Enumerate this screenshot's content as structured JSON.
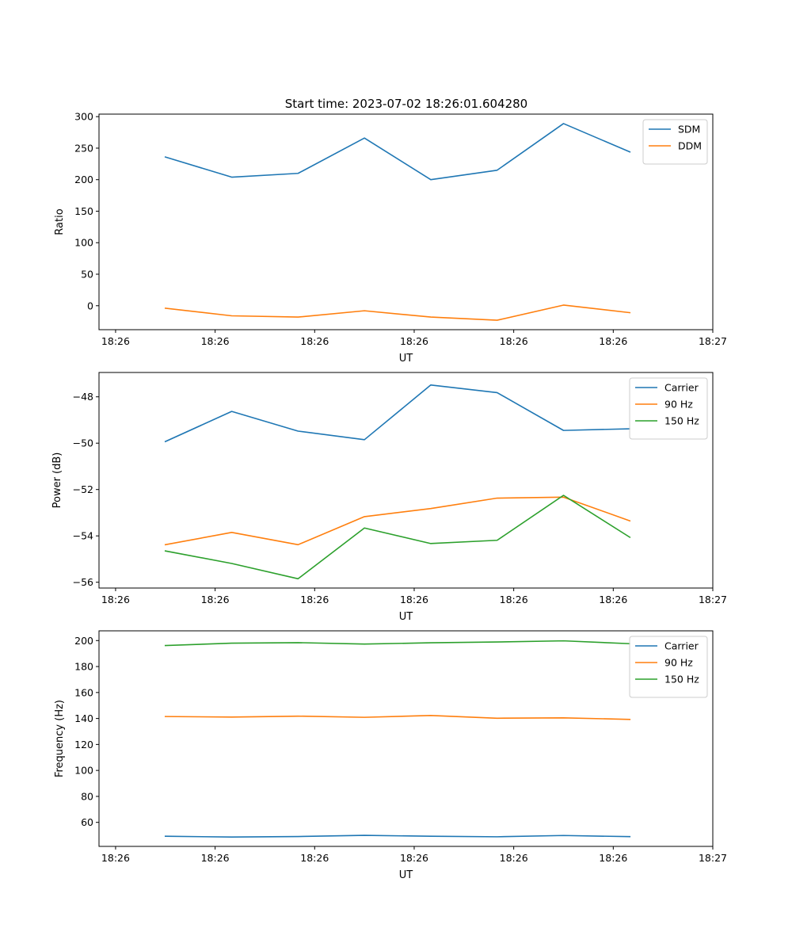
{
  "figure_title": "Start time: 2023-07-02 18:26:01.604280",
  "colors": {
    "c0": "#1f77b4",
    "c1": "#ff7f0e",
    "c2": "#2ca02c"
  },
  "chart_data": [
    {
      "type": "line",
      "xlabel": "UT",
      "ylabel": "Ratio",
      "x": [
        1,
        2,
        3,
        4,
        5,
        6,
        7,
        8
      ],
      "xlim": [
        0,
        9.25
      ],
      "x_ticks": [
        0.25,
        1.75,
        3.25,
        4.75,
        6.25,
        7.75,
        9.25
      ],
      "x_tick_labels": [
        "18:26",
        "18:26",
        "18:26",
        "18:26",
        "18:26",
        "18:26",
        "18:27"
      ],
      "ylim": [
        -38,
        304
      ],
      "y_ticks": [
        0,
        50,
        100,
        150,
        200,
        250,
        300
      ],
      "y_tick_labels": [
        "0",
        "50",
        "100",
        "150",
        "200",
        "250",
        "300"
      ],
      "legend_position": "top-right",
      "series": [
        {
          "name": "SDM",
          "color": "#1f77b4",
          "values": [
            236,
            204,
            210,
            266,
            200,
            215,
            289,
            244
          ]
        },
        {
          "name": "DDM",
          "color": "#ff7f0e",
          "values": [
            -4,
            -16,
            -18,
            -8,
            -18,
            -23,
            1,
            -11
          ]
        }
      ]
    },
    {
      "type": "line",
      "xlabel": "UT",
      "ylabel": "Power (dB)",
      "x": [
        1,
        2,
        3,
        4,
        5,
        6,
        7,
        8
      ],
      "xlim": [
        0,
        9.25
      ],
      "x_ticks": [
        0.25,
        1.75,
        3.25,
        4.75,
        6.25,
        7.75,
        9.25
      ],
      "x_tick_labels": [
        "18:26",
        "18:26",
        "18:26",
        "18:26",
        "18:26",
        "18:26",
        "18:27"
      ],
      "ylim": [
        -56.25,
        -46.95
      ],
      "y_ticks": [
        -56,
        -54,
        -52,
        -50,
        -48
      ],
      "y_tick_labels": [
        "−56",
        "−54",
        "−52",
        "−50",
        "−48"
      ],
      "legend_position": "top-right",
      "series": [
        {
          "name": "Carrier",
          "color": "#1f77b4",
          "values": [
            -49.93,
            -48.63,
            -49.48,
            -49.85,
            -47.49,
            -47.82,
            -49.45,
            -49.38
          ]
        },
        {
          "name": "90 Hz",
          "color": "#ff7f0e",
          "values": [
            -54.38,
            -53.85,
            -54.38,
            -53.17,
            -52.82,
            -52.37,
            -52.33,
            -53.35
          ]
        },
        {
          "name": "150 Hz",
          "color": "#2ca02c",
          "values": [
            -54.65,
            -55.19,
            -55.85,
            -53.66,
            -54.33,
            -54.19,
            -52.25,
            -54.06
          ]
        }
      ]
    },
    {
      "type": "line",
      "xlabel": "UT",
      "ylabel": "Frequency (Hz)",
      "x": [
        1,
        2,
        3,
        4,
        5,
        6,
        7,
        8
      ],
      "xlim": [
        0,
        9.25
      ],
      "x_ticks": [
        0.25,
        1.75,
        3.25,
        4.75,
        6.25,
        7.75,
        9.25
      ],
      "x_tick_labels": [
        "18:26",
        "18:26",
        "18:26",
        "18:26",
        "18:26",
        "18:26",
        "18:27"
      ],
      "ylim": [
        41.5,
        207.5
      ],
      "y_ticks": [
        60,
        80,
        100,
        120,
        140,
        160,
        180,
        200
      ],
      "y_tick_labels": [
        "60",
        "80",
        "100",
        "120",
        "140",
        "160",
        "180",
        "200"
      ],
      "legend_position": "top-right",
      "series": [
        {
          "name": "Carrier",
          "color": "#1f77b4",
          "values": [
            49.3,
            48.7,
            49.1,
            50.0,
            49.3,
            48.9,
            49.9,
            49.0
          ]
        },
        {
          "name": "90 Hz",
          "color": "#ff7f0e",
          "values": [
            141.5,
            141.1,
            141.8,
            140.9,
            142.3,
            140.2,
            140.5,
            139.3
          ]
        },
        {
          "name": "150 Hz",
          "color": "#2ca02c",
          "values": [
            196.2,
            198.0,
            198.4,
            197.3,
            198.3,
            198.9,
            199.8,
            197.6
          ]
        }
      ]
    }
  ]
}
